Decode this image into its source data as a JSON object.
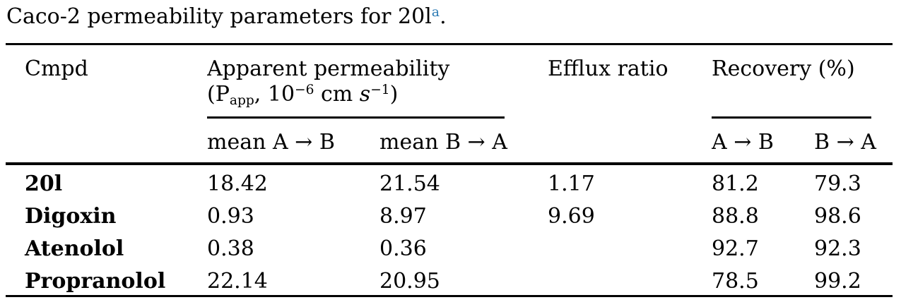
{
  "title": {
    "text": "Caco-2 permeability parameters for 20l",
    "footnote_marker": "a",
    "suffix": "."
  },
  "colors": {
    "footnote_link": "#2e7cb5",
    "text": "#000000",
    "rule": "#000000",
    "background": "#ffffff"
  },
  "table": {
    "columns": {
      "cmpd": "Cmpd",
      "apparent_permeability": {
        "title": "Apparent permeability",
        "unit_open": "(P",
        "unit_sub": "app",
        "unit_mid1": ", 10",
        "unit_sup1": "−6",
        "unit_mid2": " cm ",
        "unit_s": "s",
        "unit_sup2": "−1",
        "unit_close": ")",
        "sub_columns": [
          "mean A → B",
          "mean B → A"
        ]
      },
      "efflux_ratio": "Efflux ratio",
      "recovery": {
        "title": "Recovery (%)",
        "sub_columns": [
          "A → B",
          "B → A"
        ]
      }
    },
    "rows": [
      {
        "cmpd": "20l",
        "mean_a_to_b": "18.42",
        "mean_b_to_a": "21.54",
        "efflux_ratio": "1.17",
        "recovery_a_to_b": "81.2",
        "recovery_b_to_a": "79.3"
      },
      {
        "cmpd": "Digoxin",
        "mean_a_to_b": "0.93",
        "mean_b_to_a": "8.97",
        "efflux_ratio": "9.69",
        "recovery_a_to_b": "88.8",
        "recovery_b_to_a": "98.6"
      },
      {
        "cmpd": "Atenolol",
        "mean_a_to_b": "0.38",
        "mean_b_to_a": "0.36",
        "efflux_ratio": "",
        "recovery_a_to_b": "92.7",
        "recovery_b_to_a": "92.3"
      },
      {
        "cmpd": "Propranolol",
        "mean_a_to_b": "22.14",
        "mean_b_to_a": "20.95",
        "efflux_ratio": "",
        "recovery_a_to_b": "78.5",
        "recovery_b_to_a": "99.2"
      }
    ]
  }
}
